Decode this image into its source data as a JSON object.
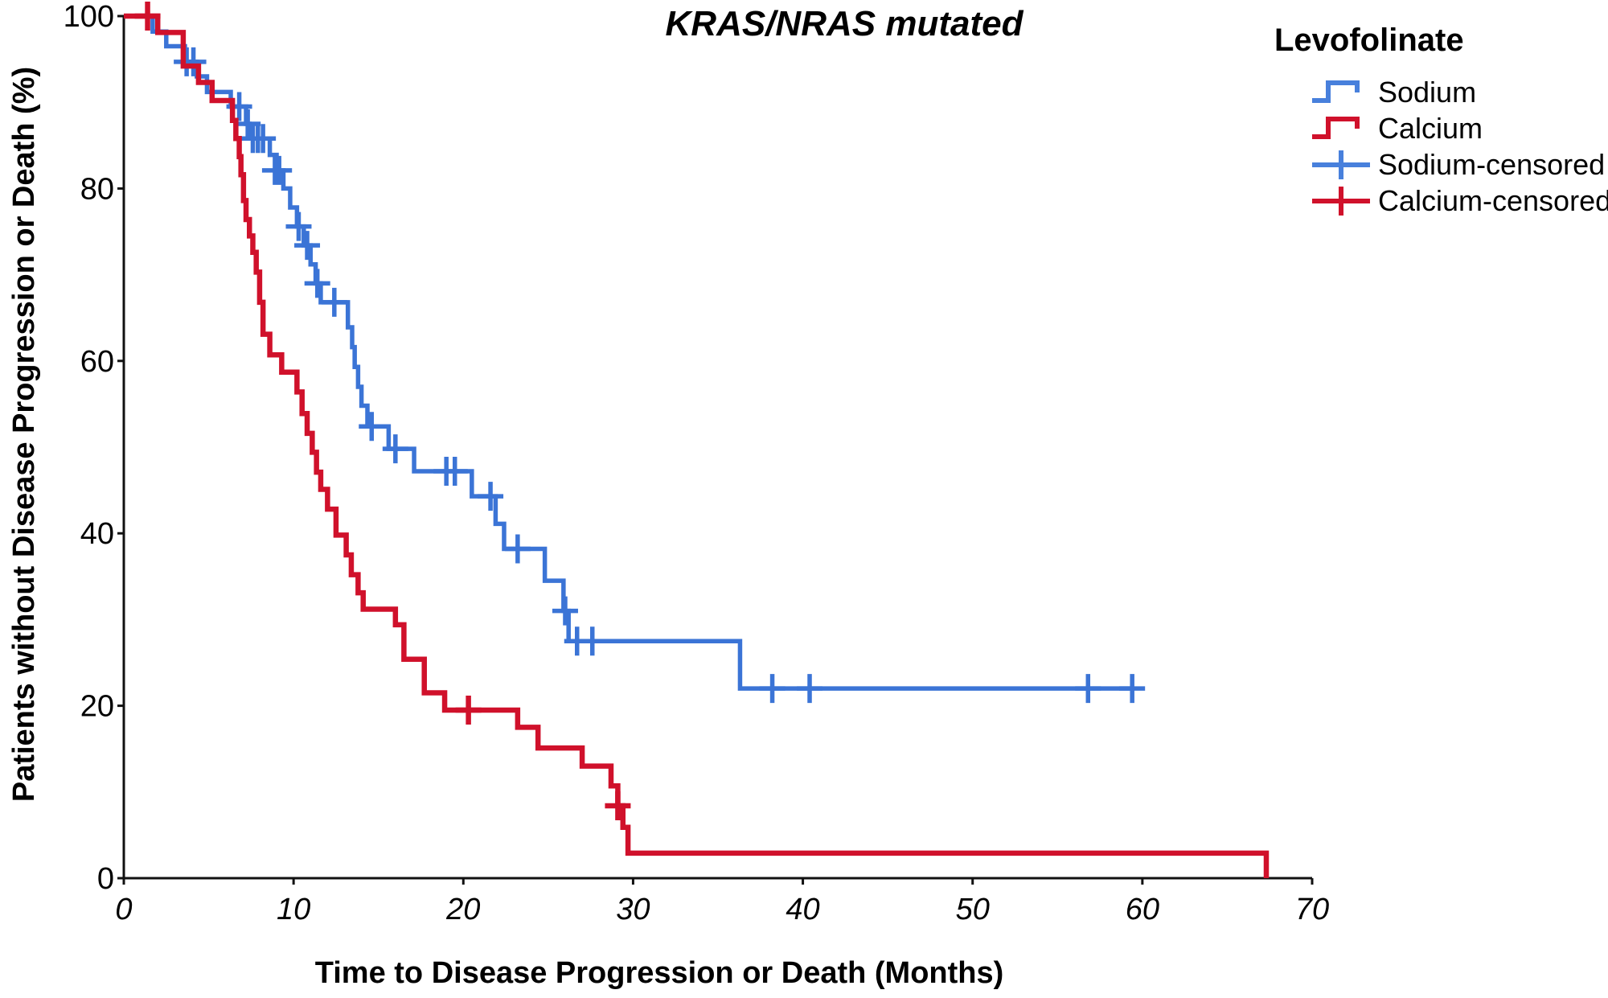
{
  "page": {
    "background": "#ffffff"
  },
  "chart_data": {
    "type": "line",
    "subtype": "kaplan-meier-step",
    "title": "KRAS/NRAS mutated",
    "xlabel": "Time to Disease Progression or Death (Months)",
    "ylabel": "Patients without Disease Progression or Death (%)",
    "xlim": [
      0,
      70
    ],
    "ylim": [
      0,
      100
    ],
    "xticks": [
      0,
      10,
      20,
      30,
      40,
      50,
      60,
      70
    ],
    "yticks": [
      0,
      20,
      40,
      60,
      80,
      100
    ],
    "grid": false,
    "legend_position": "top-right",
    "legend_title": "Levofolinate",
    "axis_color": "#111111",
    "series": [
      {
        "name": "Sodium",
        "color": "#3B74D6",
        "line_width": 5.5,
        "end": 59.5,
        "steps": [
          [
            0,
            100
          ],
          [
            1.7,
            98.2
          ],
          [
            2.5,
            96.5
          ],
          [
            3.6,
            94.7
          ],
          [
            4.3,
            93.0
          ],
          [
            4.9,
            91.2
          ],
          [
            6.3,
            89.5
          ],
          [
            7.2,
            87.5
          ],
          [
            7.4,
            85.8
          ],
          [
            8.6,
            83.9
          ],
          [
            9.0,
            82.1
          ],
          [
            9.4,
            80.0
          ],
          [
            9.8,
            77.8
          ],
          [
            10.2,
            75.6
          ],
          [
            10.6,
            73.4
          ],
          [
            11.0,
            71.2
          ],
          [
            11.3,
            69.0
          ],
          [
            11.6,
            66.8
          ],
          [
            13.2,
            63.9
          ],
          [
            13.45,
            61.6
          ],
          [
            13.6,
            59.3
          ],
          [
            13.8,
            57.0
          ],
          [
            14.0,
            54.8
          ],
          [
            14.35,
            52.4
          ],
          [
            15.6,
            49.8
          ],
          [
            17.1,
            47.2
          ],
          [
            20.5,
            44.3
          ],
          [
            21.9,
            41.1
          ],
          [
            22.4,
            38.2
          ],
          [
            24.8,
            34.5
          ],
          [
            25.9,
            31.0
          ],
          [
            26.2,
            27.5
          ],
          [
            36.3,
            22.0
          ]
        ],
        "censor_label": "Sodium-censored",
        "censors": [
          [
            3.7,
            94.7
          ],
          [
            4.1,
            94.7
          ],
          [
            6.8,
            89.5
          ],
          [
            7.3,
            87.5
          ],
          [
            7.6,
            85.8
          ],
          [
            7.9,
            85.8
          ],
          [
            8.2,
            85.8
          ],
          [
            8.9,
            82.1
          ],
          [
            9.15,
            82.1
          ],
          [
            10.3,
            75.6
          ],
          [
            10.8,
            73.4
          ],
          [
            11.4,
            69.0
          ],
          [
            12.4,
            66.8
          ],
          [
            14.6,
            52.4
          ],
          [
            16.0,
            49.8
          ],
          [
            19.0,
            47.2
          ],
          [
            19.5,
            47.2
          ],
          [
            21.6,
            44.3
          ],
          [
            23.2,
            38.2
          ],
          [
            26.0,
            31.0
          ],
          [
            26.7,
            27.5
          ],
          [
            27.6,
            27.5
          ],
          [
            38.2,
            22.0
          ],
          [
            40.4,
            22.0
          ],
          [
            56.8,
            22.0
          ],
          [
            59.4,
            22.0
          ]
        ]
      },
      {
        "name": "Calcium",
        "color": "#D0112B",
        "line_width": 6.5,
        "end": null,
        "steps": [
          [
            0,
            100
          ],
          [
            2.0,
            98.1
          ],
          [
            3.5,
            94.2
          ],
          [
            4.4,
            92.3
          ],
          [
            5.2,
            90.2
          ],
          [
            6.4,
            87.9
          ],
          [
            6.6,
            85.8
          ],
          [
            6.8,
            83.7
          ],
          [
            6.9,
            81.6
          ],
          [
            7.05,
            78.6
          ],
          [
            7.2,
            76.4
          ],
          [
            7.4,
            74.5
          ],
          [
            7.6,
            72.6
          ],
          [
            7.8,
            70.3
          ],
          [
            8.0,
            66.8
          ],
          [
            8.2,
            63.1
          ],
          [
            8.6,
            60.7
          ],
          [
            9.3,
            58.7
          ],
          [
            10.2,
            56.4
          ],
          [
            10.5,
            53.9
          ],
          [
            10.8,
            51.6
          ],
          [
            11.1,
            49.4
          ],
          [
            11.35,
            47.1
          ],
          [
            11.6,
            45.1
          ],
          [
            12.0,
            42.8
          ],
          [
            12.5,
            39.8
          ],
          [
            13.1,
            37.5
          ],
          [
            13.4,
            35.2
          ],
          [
            13.8,
            33.1
          ],
          [
            14.1,
            31.2
          ],
          [
            16.0,
            29.4
          ],
          [
            16.5,
            25.4
          ],
          [
            17.7,
            21.5
          ],
          [
            18.9,
            19.5
          ],
          [
            23.2,
            17.5
          ],
          [
            24.4,
            15.1
          ],
          [
            27.0,
            13.0
          ],
          [
            28.7,
            10.7
          ],
          [
            29.1,
            8.4
          ],
          [
            29.4,
            5.9
          ],
          [
            29.7,
            2.9
          ],
          [
            67.3,
            0
          ]
        ],
        "censor_label": "Calcium-censored",
        "censors": [
          [
            1.4,
            100
          ],
          [
            20.3,
            19.5
          ],
          [
            29.1,
            8.4
          ]
        ]
      }
    ]
  },
  "legend": {
    "title": "Levofolinate",
    "items": [
      {
        "label": "Sodium",
        "type": "step",
        "color": "#4880DC"
      },
      {
        "label": "Calcium",
        "type": "step",
        "color": "#D0112B"
      },
      {
        "label": "Sodium-censored",
        "type": "plus",
        "color": "#4880DC"
      },
      {
        "label": "Calcium-censored",
        "type": "plus",
        "color": "#D0112B"
      }
    ]
  }
}
